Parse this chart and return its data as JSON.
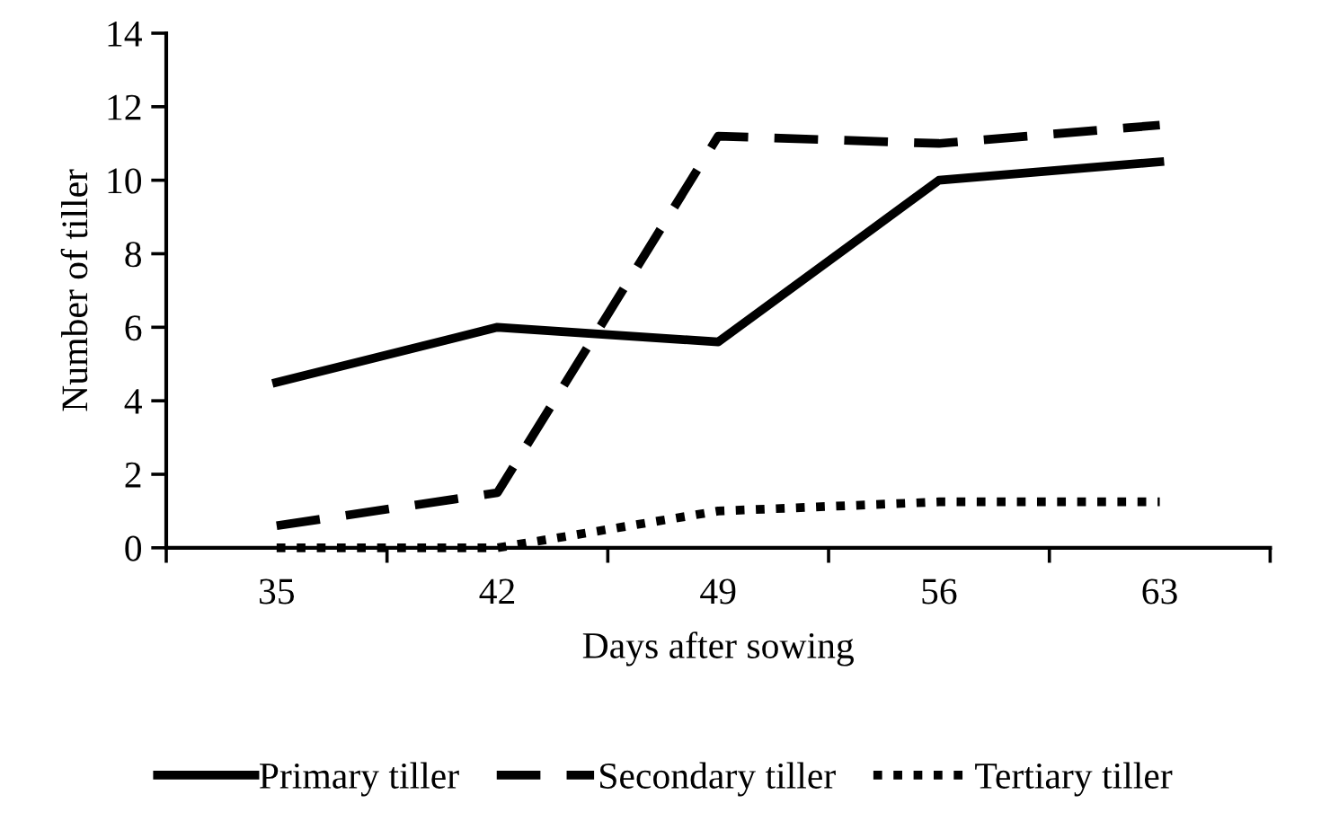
{
  "chart_data": {
    "type": "line",
    "xlabel": "Days after sowing",
    "ylabel": "Number of tiller",
    "categories": [
      "35",
      "42",
      "49",
      "56",
      "63"
    ],
    "series": [
      {
        "name": "Primary tiller",
        "color": "#000000",
        "line_style": "solid",
        "values": [
          4.5,
          6,
          5.6,
          10,
          10.5
        ]
      },
      {
        "name": "Secondary tiller",
        "color": "#000000",
        "line_style": "dashed",
        "values": [
          0.6,
          1.5,
          11.2,
          11,
          11.5
        ]
      },
      {
        "name": "Tertiary tiller",
        "color": "#000000",
        "line_style": "dotted",
        "values": [
          0,
          0,
          1,
          1.25,
          1.25
        ]
      }
    ],
    "ylim": [
      0,
      14
    ],
    "yticks": [
      0,
      2,
      4,
      6,
      8,
      10,
      12,
      14
    ],
    "grid": false,
    "legend": "bottom",
    "marker": "none"
  }
}
